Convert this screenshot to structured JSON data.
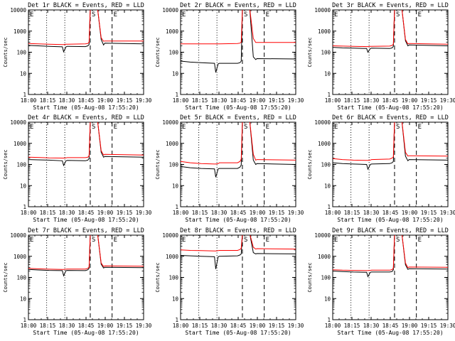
{
  "colors": {
    "background": "#ffffff",
    "events": "#000000",
    "lld": "#ff0000",
    "axis": "#000000"
  },
  "chart_data": [
    {
      "type": "line",
      "title": "Det 1r BLACK = Events, RED = LLD",
      "xlabel": "Start Time (05-Aug-08 17:55:20)",
      "ylabel": "Counts/sec",
      "yscale": "log",
      "ylim": [
        1,
        10000
      ],
      "xticks": [
        "18:00",
        "18:15",
        "18:30",
        "18:45",
        "19:00",
        "19:15",
        "19:30"
      ],
      "xlim": [
        0,
        95
      ],
      "markers": [
        {
          "label": "E",
          "x": 0
        },
        {
          "label": "S",
          "x": 51
        },
        {
          "label": "E",
          "x": 69
        }
      ],
      "grid_lines_x": [
        15,
        30
      ],
      "series": [
        {
          "name": "Events",
          "x": [
            0,
            8,
            17,
            28,
            29,
            31,
            32,
            47,
            49,
            50,
            51,
            57,
            60,
            62,
            63,
            95
          ],
          "y": [
            210,
            200,
            190,
            180,
            105,
            180,
            190,
            185,
            200,
            230,
            12000,
            12000,
            400,
            220,
            270,
            250
          ]
        },
        {
          "name": "LLD",
          "x": [
            0,
            8,
            17,
            28,
            29,
            31,
            32,
            47,
            49,
            50,
            51,
            57,
            60,
            62,
            63,
            95
          ],
          "y": [
            260,
            250,
            240,
            230,
            230,
            240,
            240,
            250,
            260,
            300,
            12000,
            12000,
            480,
            330,
            340,
            340
          ]
        }
      ]
    },
    {
      "type": "line",
      "title": "Det 2r BLACK = Events, RED = LLD",
      "xlabel": "Start Time (05-Aug-08 17:55:20)",
      "ylabel": "Counts/sec",
      "yscale": "log",
      "ylim": [
        1,
        10000
      ],
      "xticks": [
        "18:00",
        "18:15",
        "18:30",
        "18:45",
        "19:00",
        "19:15",
        "19:30"
      ],
      "xlim": [
        0,
        95
      ],
      "markers": [
        {
          "label": "E",
          "x": 0
        },
        {
          "label": "S",
          "x": 51
        },
        {
          "label": "E",
          "x": 69
        }
      ],
      "grid_lines_x": [
        15,
        30
      ],
      "series": [
        {
          "name": "Events",
          "x": [
            0,
            8,
            17,
            28,
            29,
            31,
            32,
            47,
            49,
            50,
            51,
            57,
            60,
            62,
            63,
            95
          ],
          "y": [
            38,
            34,
            32,
            30,
            11,
            28,
            30,
            30,
            32,
            38,
            12000,
            12000,
            60,
            45,
            50,
            48
          ]
        },
        {
          "name": "LLD",
          "x": [
            0,
            8,
            17,
            28,
            29,
            31,
            32,
            47,
            49,
            50,
            51,
            57,
            60,
            62,
            63,
            95
          ],
          "y": [
            250,
            250,
            250,
            250,
            250,
            250,
            250,
            260,
            270,
            300,
            12000,
            12000,
            450,
            290,
            290,
            290
          ]
        }
      ]
    },
    {
      "type": "line",
      "title": "Det 3r BLACK = Events, RED = LLD",
      "xlabel": "Start Time (05-Aug-08 17:55:20)",
      "ylabel": "Counts/sec",
      "yscale": "log",
      "ylim": [
        1,
        10000
      ],
      "xticks": [
        "18:00",
        "18:15",
        "18:30",
        "18:45",
        "19:00",
        "19:15",
        "19:30"
      ],
      "xlim": [
        0,
        95
      ],
      "markers": [
        {
          "label": "E",
          "x": 0
        },
        {
          "label": "S",
          "x": 51
        },
        {
          "label": "E",
          "x": 69
        }
      ],
      "grid_lines_x": [
        15,
        30
      ],
      "series": [
        {
          "name": "Events",
          "x": [
            0,
            8,
            17,
            28,
            29,
            31,
            32,
            47,
            49,
            50,
            51,
            57,
            60,
            62,
            63,
            95
          ],
          "y": [
            170,
            160,
            155,
            150,
            100,
            150,
            155,
            150,
            160,
            190,
            12000,
            12000,
            350,
            200,
            220,
            200
          ]
        },
        {
          "name": "LLD",
          "x": [
            0,
            8,
            17,
            28,
            29,
            31,
            32,
            47,
            49,
            50,
            51,
            57,
            60,
            62,
            63,
            95
          ],
          "y": [
            200,
            195,
            190,
            185,
            185,
            190,
            190,
            195,
            210,
            240,
            12000,
            12000,
            400,
            250,
            260,
            240
          ]
        }
      ]
    },
    {
      "type": "line",
      "title": "Det 4r BLACK = Events, RED = LLD",
      "xlabel": "Start Time (05-Aug-08 17:55:20)",
      "ylabel": "Counts/sec",
      "yscale": "log",
      "ylim": [
        1,
        10000
      ],
      "xticks": [
        "18:00",
        "18:15",
        "18:30",
        "18:45",
        "19:00",
        "19:15",
        "19:30"
      ],
      "xlim": [
        0,
        95
      ],
      "markers": [
        {
          "label": "E",
          "x": 0
        },
        {
          "label": "S",
          "x": 51
        },
        {
          "label": "E",
          "x": 69
        }
      ],
      "grid_lines_x": [
        15,
        30
      ],
      "series": [
        {
          "name": "Events",
          "x": [
            0,
            8,
            17,
            28,
            29,
            31,
            32,
            47,
            49,
            50,
            51,
            57,
            60,
            62,
            63,
            95
          ],
          "y": [
            170,
            165,
            160,
            150,
            90,
            150,
            155,
            150,
            160,
            190,
            12000,
            12000,
            380,
            220,
            240,
            220
          ]
        },
        {
          "name": "LLD",
          "x": [
            0,
            8,
            17,
            28,
            29,
            31,
            32,
            47,
            49,
            50,
            51,
            57,
            60,
            62,
            63,
            95
          ],
          "y": [
            220,
            215,
            205,
            200,
            200,
            205,
            210,
            210,
            220,
            260,
            12000,
            12000,
            450,
            280,
            300,
            280
          ]
        }
      ]
    },
    {
      "type": "line",
      "title": "Det 5r BLACK = Events, RED = LLD",
      "xlabel": "Start Time (05-Aug-08 17:55:20)",
      "ylabel": "Counts/sec",
      "yscale": "log",
      "ylim": [
        1,
        10000
      ],
      "xticks": [
        "18:00",
        "18:15",
        "18:30",
        "18:45",
        "19:00",
        "19:15",
        "19:30"
      ],
      "xlim": [
        0,
        95
      ],
      "markers": [
        {
          "label": "E",
          "x": 0
        },
        {
          "label": "S",
          "x": 51
        },
        {
          "label": "E",
          "x": 69
        }
      ],
      "grid_lines_x": [
        15,
        30
      ],
      "series": [
        {
          "name": "Events",
          "x": [
            0,
            8,
            17,
            28,
            29,
            31,
            32,
            47,
            49,
            50,
            51,
            57,
            60,
            62,
            63,
            95
          ],
          "y": [
            80,
            70,
            65,
            62,
            25,
            62,
            65,
            65,
            75,
            95,
            12000,
            12000,
            160,
            100,
            110,
            100
          ]
        },
        {
          "name": "LLD",
          "x": [
            0,
            8,
            17,
            28,
            29,
            31,
            32,
            47,
            49,
            50,
            51,
            57,
            60,
            62,
            63,
            95
          ],
          "y": [
            140,
            120,
            110,
            105,
            105,
            110,
            120,
            120,
            140,
            180,
            12000,
            12000,
            300,
            160,
            170,
            160
          ]
        }
      ]
    },
    {
      "type": "line",
      "title": "Det 6r BLACK = Events, RED = LLD",
      "xlabel": "Start Time (05-Aug-08 17:55:20)",
      "ylabel": "Counts/sec",
      "yscale": "log",
      "ylim": [
        1,
        10000
      ],
      "xticks": [
        "18:00",
        "18:15",
        "18:30",
        "18:45",
        "19:00",
        "19:15",
        "19:30"
      ],
      "xlim": [
        0,
        95
      ],
      "markers": [
        {
          "label": "E",
          "x": 0
        },
        {
          "label": "S",
          "x": 51
        },
        {
          "label": "E",
          "x": 69
        }
      ],
      "grid_lines_x": [
        15,
        30
      ],
      "series": [
        {
          "name": "Events",
          "x": [
            0,
            8,
            17,
            28,
            29,
            31,
            32,
            47,
            49,
            50,
            51,
            57,
            60,
            62,
            63,
            95
          ],
          "y": [
            120,
            110,
            105,
            100,
            60,
            100,
            105,
            110,
            120,
            140,
            12000,
            12000,
            250,
            150,
            170,
            160
          ]
        },
        {
          "name": "LLD",
          "x": [
            0,
            8,
            17,
            28,
            29,
            31,
            32,
            47,
            49,
            50,
            51,
            57,
            60,
            62,
            63,
            95
          ],
          "y": [
            190,
            170,
            160,
            155,
            155,
            160,
            170,
            180,
            200,
            230,
            12000,
            12000,
            380,
            250,
            260,
            250
          ]
        }
      ]
    },
    {
      "type": "line",
      "title": "Det 7r BLACK = Events, RED = LLD",
      "xlabel": "Start Time (05-Aug-08 17:55:20)",
      "ylabel": "Counts/sec",
      "yscale": "log",
      "ylim": [
        1,
        10000
      ],
      "xticks": [
        "18:00",
        "18:15",
        "18:30",
        "18:45",
        "19:00",
        "19:15",
        "19:30"
      ],
      "xlim": [
        0,
        95
      ],
      "markers": [
        {
          "label": "E",
          "x": 0
        },
        {
          "label": "S",
          "x": 51
        },
        {
          "label": "E",
          "x": 69
        }
      ],
      "grid_lines_x": [
        15,
        30
      ],
      "series": [
        {
          "name": "Events",
          "x": [
            0,
            8,
            17,
            28,
            29,
            31,
            32,
            47,
            49,
            50,
            51,
            57,
            60,
            62,
            63,
            95
          ],
          "y": [
            240,
            225,
            215,
            210,
            120,
            210,
            215,
            210,
            230,
            270,
            12000,
            12000,
            420,
            280,
            300,
            290
          ]
        },
        {
          "name": "LLD",
          "x": [
            0,
            8,
            17,
            28,
            29,
            31,
            32,
            47,
            49,
            50,
            51,
            57,
            60,
            62,
            63,
            95
          ],
          "y": [
            270,
            255,
            245,
            240,
            240,
            245,
            250,
            250,
            270,
            310,
            12000,
            12000,
            480,
            330,
            350,
            340
          ]
        }
      ]
    },
    {
      "type": "line",
      "title": "Det 8r BLACK = Events, RED = LLD",
      "xlabel": "Start Time (05-Aug-08 17:55:20)",
      "ylabel": "Counts/sec",
      "yscale": "log",
      "ylim": [
        1,
        10000
      ],
      "xticks": [
        "18:00",
        "18:15",
        "18:30",
        "18:45",
        "19:00",
        "19:15",
        "19:30"
      ],
      "xlim": [
        0,
        95
      ],
      "markers": [
        {
          "label": "E",
          "x": 0
        },
        {
          "label": "S",
          "x": 51
        },
        {
          "label": "E",
          "x": 69
        }
      ],
      "grid_lines_x": [
        15,
        30
      ],
      "series": [
        {
          "name": "Events",
          "x": [
            0,
            8,
            17,
            28,
            29,
            31,
            32,
            47,
            49,
            50,
            51,
            57,
            60,
            62,
            63,
            95
          ],
          "y": [
            1100,
            1050,
            1000,
            950,
            250,
            950,
            1000,
            1050,
            1150,
            1300,
            12000,
            12000,
            1500,
            1300,
            1350,
            1300
          ]
        },
        {
          "name": "LLD",
          "x": [
            0,
            8,
            17,
            28,
            29,
            31,
            32,
            47,
            49,
            50,
            51,
            57,
            60,
            62,
            63,
            95
          ],
          "y": [
            2000,
            1900,
            1850,
            1800,
            1800,
            1850,
            1900,
            1900,
            2100,
            2400,
            12000,
            12000,
            2700,
            2200,
            2300,
            2200
          ]
        }
      ]
    },
    {
      "type": "line",
      "title": "Det 9r BLACK = Events, RED = LLD",
      "xlabel": "Start Time (05-Aug-08 17:55:20)",
      "ylabel": "Counts/sec",
      "yscale": "log",
      "ylim": [
        1,
        10000
      ],
      "xticks": [
        "18:00",
        "18:15",
        "18:30",
        "18:45",
        "19:00",
        "19:15",
        "19:30"
      ],
      "xlim": [
        0,
        95
      ],
      "markers": [
        {
          "label": "E",
          "x": 0
        },
        {
          "label": "S",
          "x": 51
        },
        {
          "label": "E",
          "x": 69
        }
      ],
      "grid_lines_x": [
        15,
        30
      ],
      "series": [
        {
          "name": "Events",
          "x": [
            0,
            8,
            17,
            28,
            29,
            31,
            32,
            47,
            49,
            50,
            51,
            57,
            60,
            62,
            63,
            95
          ],
          "y": [
            200,
            190,
            180,
            175,
            110,
            175,
            180,
            180,
            190,
            230,
            12000,
            12000,
            400,
            240,
            260,
            250
          ]
        },
        {
          "name": "LLD",
          "x": [
            0,
            8,
            17,
            28,
            29,
            31,
            32,
            47,
            49,
            50,
            51,
            57,
            60,
            62,
            63,
            95
          ],
          "y": [
            230,
            220,
            215,
            210,
            210,
            215,
            220,
            220,
            235,
            280,
            12000,
            12000,
            480,
            290,
            310,
            300
          ]
        }
      ]
    }
  ]
}
